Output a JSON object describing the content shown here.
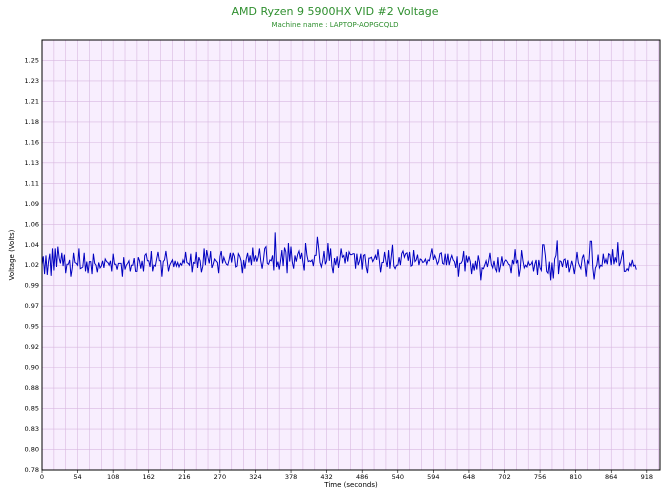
{
  "colors": {
    "plot_bg": "#f8eefe",
    "grid": "#d8b8e0",
    "line": "#0000c0",
    "title": "#2f8f2f",
    "frame": "#000000"
  },
  "chart_data": {
    "type": "line",
    "title": "AMD Ryzen 9 5900HX VID #2 Voltage",
    "subtitle": "Machine name : LAPTOP-AOPGCQLD",
    "xlabel": "Time (seconds)",
    "ylabel": "Voltage (Volts)",
    "xlim": [
      0,
      938
    ],
    "ylim": [
      0.78,
      1.265
    ],
    "grid": true,
    "xticks": [
      0,
      54,
      108,
      162,
      216,
      270,
      324,
      378,
      432,
      486,
      540,
      594,
      648,
      702,
      756,
      810,
      864,
      918
    ],
    "ytick_labels": [
      "0.78",
      "0.80",
      "0.83",
      "0.85",
      "0.88",
      "0.90",
      "0.92",
      "0.95",
      "0.97",
      "0.99",
      "1.02",
      "1.04",
      "1.06",
      "1.09",
      "1.11",
      "1.13",
      "1.16",
      "1.18",
      "1.21",
      "1.23",
      "1.25"
    ],
    "x_step": 2,
    "series": [
      {
        "values": [
          1.011,
          1.021,
          1.001,
          1.022,
          1.0,
          1.015,
          1.024,
          0.999,
          1.03,
          1.005,
          1.03,
          1.009,
          1.032,
          1.019,
          1.013,
          1.025,
          1.01,
          1.023,
          1.002,
          1.012,
          1.012,
          1.017,
          0.998,
          1.008,
          1.025,
          1.014,
          1.013,
          1.011,
          1.03,
          1.007,
          1.008,
          1.009,
          1.025,
          1.004,
          1.015,
          1.002,
          1.015,
          1.015,
          1.001,
          1.024,
          1.013,
          1.011,
          1.003,
          1.014,
          1.008,
          1.01,
          1.016,
          1.008,
          1.018,
          1.015,
          1.014,
          1.011,
          1.016,
          1.004,
          1.024,
          1.012,
          1.012,
          1.006,
          1.013,
          1.013,
          1.013,
          0.998,
          1.02,
          1.006,
          1.011,
          1.013,
          1.016,
          1.004,
          1.011,
          1.011,
          1.019,
          1.004,
          1.004,
          1.02,
          1.016,
          1.007,
          1.016,
          1.004,
          1.022,
          1.024,
          1.016,
          1.016,
          1.009,
          1.027,
          1.004,
          1.011,
          1.01,
          1.018,
          1.026,
          1.016,
          1.016,
          0.998,
          1.015,
          1.017,
          1.027,
          1.016,
          1.004,
          1.011,
          1.014,
          1.017,
          1.009,
          1.016,
          1.01,
          1.014,
          1.009,
          1.013,
          1.011,
          1.017,
          1.013,
          1.026,
          1.014,
          1.013,
          1.011,
          1.024,
          1.003,
          1.014,
          1.013,
          1.026,
          1.008,
          1.02,
          1.016,
          1.003,
          1.01,
          1.03,
          1.011,
          1.028,
          1.02,
          1.013,
          1.027,
          1.008,
          1.012,
          1.018,
          1.016,
          1.014,
          1.002,
          1.021,
          1.027,
          1.013,
          1.02,
          1.015,
          1.012,
          1.011,
          1.017,
          1.025,
          1.014,
          1.025,
          1.021,
          1.009,
          1.01,
          1.024,
          1.021,
          1.016,
          1.002,
          1.017,
          1.007,
          1.018,
          1.025,
          1.014,
          1.022,
          1.011,
          1.031,
          1.015,
          1.022,
          1.015,
          1.02,
          1.03,
          1.016,
          1.007,
          1.017,
          1.03,
          1.032,
          1.013,
          1.012,
          1.017,
          1.016,
          1.022,
          1.005,
          1.048,
          1.009,
          1.015,
          1.006,
          1.016,
          1.028,
          1.01,
          1.031,
          1.026,
          1.002,
          1.036,
          1.015,
          1.032,
          1.014,
          1.007,
          1.022,
          1.015,
          1.023,
          1.027,
          1.018,
          1.025,
          1.014,
          1.005,
          1.036,
          1.022,
          1.015,
          1.016,
          1.015,
          1.017,
          1.01,
          1.022,
          1.022,
          1.043,
          1.03,
          1.014,
          1.009,
          1.016,
          1.027,
          1.012,
          1.016,
          1.036,
          1.016,
          1.03,
          1.01,
          1.002,
          1.019,
          1.011,
          1.021,
          1.008,
          1.017,
          1.03,
          1.02,
          1.022,
          1.013,
          1.026,
          1.015,
          1.026,
          1.023,
          1.023,
          1.024,
          1.024,
          1.007,
          1.024,
          1.011,
          1.016,
          1.024,
          1.006,
          1.022,
          1.023,
          1.009,
          1.002,
          1.019,
          1.019,
          1.02,
          1.015,
          1.018,
          1.022,
          1.017,
          1.029,
          1.017,
          1.003,
          1.014,
          1.014,
          1.026,
          1.016,
          1.009,
          1.028,
          1.007,
          1.02,
          1.034,
          1.01,
          1.007,
          1.011,
          1.011,
          1.02,
          1.011,
          1.024,
          1.027,
          1.02,
          1.024,
          1.025,
          1.016,
          1.026,
          1.01,
          1.011,
          1.028,
          1.015,
          1.017,
          1.023,
          1.011,
          1.018,
          1.017,
          1.014,
          1.015,
          1.018,
          1.012,
          1.017,
          1.016,
          1.023,
          1.03,
          1.017,
          1.022,
          1.018,
          1.012,
          1.015,
          1.024,
          1.025,
          1.013,
          1.012,
          1.024,
          1.011,
          1.024,
          1.011,
          1.018,
          1.022,
          1.017,
          1.015,
          1.008,
          1.021,
          0.998,
          1.013,
          1.013,
          1.016,
          1.027,
          1.004,
          1.022,
          1.014,
          1.021,
          1.015,
          1.001,
          1.013,
          1.005,
          1.016,
          1.006,
          1.022,
          1.014,
          0.994,
          1.008,
          1.007,
          1.011,
          1.016,
          1.009,
          1.016,
          1.025,
          1.012,
          1.008,
          1.016,
          1.007,
          1.004,
          1.02,
          1.003,
          1.011,
          1.021,
          1.01,
          1.015,
          1.017,
          1.015,
          1.012,
          1.011,
          1.002,
          1.017,
          1.012,
          1.029,
          1.013,
          1.017,
          0.998,
          1.007,
          1.028,
          1.016,
          1.008,
          1.011,
          1.009,
          1.015,
          1.011,
          1.012,
          1.015,
          1.004,
          1.012,
          1.017,
          1.0,
          1.017,
          1.008,
          1.005,
          1.034,
          1.034,
          1.022,
          1.004,
          1.002,
          1.015,
          0.994,
          1.014,
          0.996,
          1.018,
          1.022,
          1.039,
          1.001,
          1.016,
          1.015,
          1.009,
          1.017,
          1.018,
          1.008,
          1.017,
          1.003,
          1.009,
          1.016,
          1.01,
          1.001,
          1.013,
          1.026,
          1.014,
          1.01,
          1.007,
          1.019,
          1.023,
          1.013,
          0.998,
          1.016,
          1.013,
          1.038,
          1.038,
          1.008,
          0.995,
          1.008,
          1.011,
          1.023,
          1.008,
          1.011,
          1.01,
          1.024,
          1.013,
          1.018,
          1.012,
          1.024,
          1.023,
          1.011,
          1.029,
          1.012,
          1.02,
          1.014,
          1.037,
          1.01,
          1.014,
          1.021,
          1.028,
          1.004,
          1.004,
          1.007,
          1.005,
          1.013,
          1.01,
          1.017,
          1.01,
          1.011,
          1.006
        ]
      }
    ]
  }
}
